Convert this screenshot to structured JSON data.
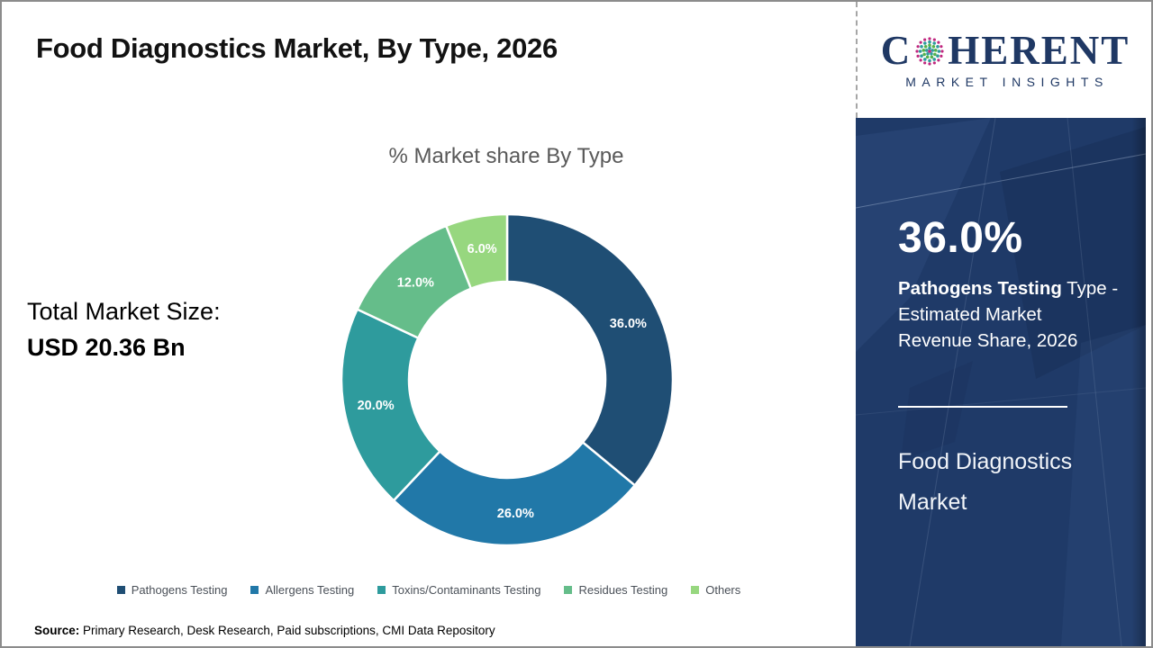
{
  "header": {
    "title": "Food Diagnostics Market, By Type, 2026"
  },
  "logo": {
    "name": "Coherent Market Insights",
    "word_c": "C",
    "word_rest": "HERENT",
    "subtitle": "MARKET INSIGHTS",
    "navy": "#1f3864",
    "globe_colors": [
      "#c0267e",
      "#2e9b9d",
      "#56b14b",
      "#2e9b9d",
      "#c0267e"
    ]
  },
  "left": {
    "total_label": "Total Market Size:",
    "total_value": "USD 20.36 Bn"
  },
  "chart_data": {
    "type": "pie",
    "subtype": "donut",
    "title": "% Market share By Type",
    "categories": [
      "Pathogens Testing",
      "Allergens Testing",
      "Toxins/Contaminants Testing",
      "Residues Testing",
      "Others"
    ],
    "values": [
      36.0,
      26.0,
      20.0,
      12.0,
      6.0
    ],
    "data_labels": [
      "36.0%",
      "26.0%",
      "20.0%",
      "12.0%",
      "6.0%"
    ],
    "colors": [
      "#1f4e74",
      "#2178a8",
      "#2e9b9d",
      "#65bd8a",
      "#97d77f"
    ],
    "start_angle_deg": 0,
    "direction": "clockwise",
    "inner_radius_ratio": 0.59,
    "legend_position": "bottom",
    "label_color": "#ffffff"
  },
  "panel": {
    "bg_color": "#1f3a68",
    "stat_value": "36.0%",
    "stat_desc": {
      "bold": "Pathogens Testing",
      "after_bold": " Type -",
      "line2": "Estimated Market",
      "line3": "Revenue Share, 2026"
    },
    "title": "Food Diagnostics Market"
  },
  "footer": {
    "source_label": "Source:",
    "source_text": " Primary Research, Desk Research, Paid subscriptions, CMI Data Repository"
  }
}
